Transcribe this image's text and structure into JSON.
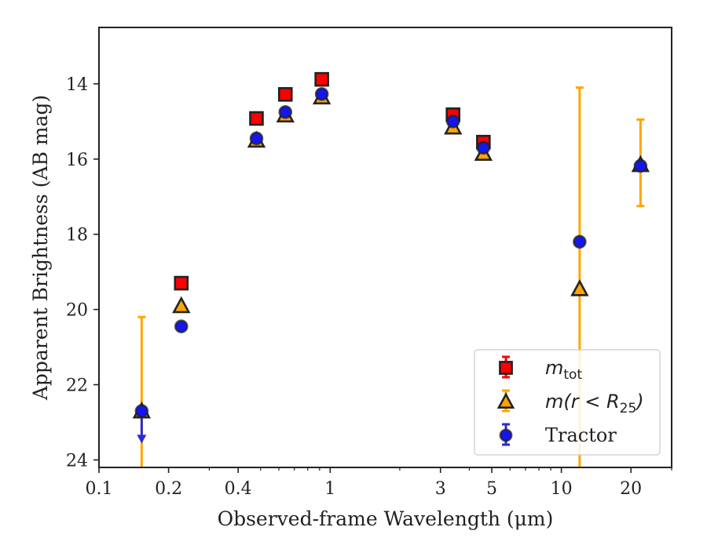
{
  "chart_data": {
    "type": "scatter",
    "title": "",
    "xlabel": "Observed-frame Wavelength (μm)",
    "ylabel": "Apparent Brightness (AB mag)",
    "xscale": "log",
    "xlim": [
      0.1,
      30
    ],
    "ylim": [
      24.2,
      12.5
    ],
    "y_inverted": true,
    "xticks": [
      0.1,
      0.2,
      0.4,
      1,
      3,
      5,
      10,
      20
    ],
    "xtick_labels": [
      "0.1",
      "0.2",
      "0.4",
      "1",
      "3",
      "5",
      "10",
      "20"
    ],
    "yticks": [
      14,
      16,
      18,
      20,
      22,
      24
    ],
    "ytick_labels": [
      "14",
      "16",
      "18",
      "20",
      "22",
      "24"
    ],
    "grid": false,
    "legend_position": "bottom-right",
    "series": [
      {
        "name": "m_tot",
        "legend_main": "m",
        "legend_sub": "tot",
        "legend_tail": "",
        "marker": "square",
        "color": "#ff0000",
        "errcolor": "#ff0000",
        "points": [
          {
            "x": 0.227,
            "y": 19.3
          },
          {
            "x": 0.48,
            "y": 14.92
          },
          {
            "x": 0.64,
            "y": 14.28
          },
          {
            "x": 0.92,
            "y": 13.88
          },
          {
            "x": 3.4,
            "y": 14.82
          },
          {
            "x": 4.6,
            "y": 15.55
          }
        ]
      },
      {
        "name": "m(r < R25)",
        "legend_main": "m(r < R",
        "legend_sub": "25",
        "legend_tail": ")",
        "marker": "triangle",
        "color": "#ffa500",
        "errcolor": "#ffa500",
        "points": [
          {
            "x": 0.153,
            "y": 22.7,
            "err_low": 20.2,
            "err_high": 24.2
          },
          {
            "x": 0.227,
            "y": 19.9
          },
          {
            "x": 0.48,
            "y": 15.5
          },
          {
            "x": 0.64,
            "y": 14.83
          },
          {
            "x": 0.92,
            "y": 14.35
          },
          {
            "x": 3.4,
            "y": 15.15
          },
          {
            "x": 4.6,
            "y": 15.85
          },
          {
            "x": 12.0,
            "y": 19.45,
            "err_low": 14.1,
            "err_high": 24.2
          },
          {
            "x": 22.0,
            "y": 16.15,
            "err_low": 14.95,
            "err_high": 17.25
          }
        ]
      },
      {
        "name": "Tractor",
        "legend_main": "Tractor",
        "legend_sub": "",
        "legend_tail": "",
        "marker": "circle",
        "color": "#1515ee",
        "errcolor": "#2a2ad8",
        "points": [
          {
            "x": 0.153,
            "y": 22.7,
            "upper_limit": true,
            "arrow_to": 23.5
          },
          {
            "x": 0.227,
            "y": 20.45
          },
          {
            "x": 0.48,
            "y": 15.45
          },
          {
            "x": 0.64,
            "y": 14.75
          },
          {
            "x": 0.92,
            "y": 14.27
          },
          {
            "x": 3.4,
            "y": 15.0
          },
          {
            "x": 4.6,
            "y": 15.7
          },
          {
            "x": 12.0,
            "y": 18.2
          },
          {
            "x": 22.0,
            "y": 16.18
          }
        ]
      }
    ]
  }
}
